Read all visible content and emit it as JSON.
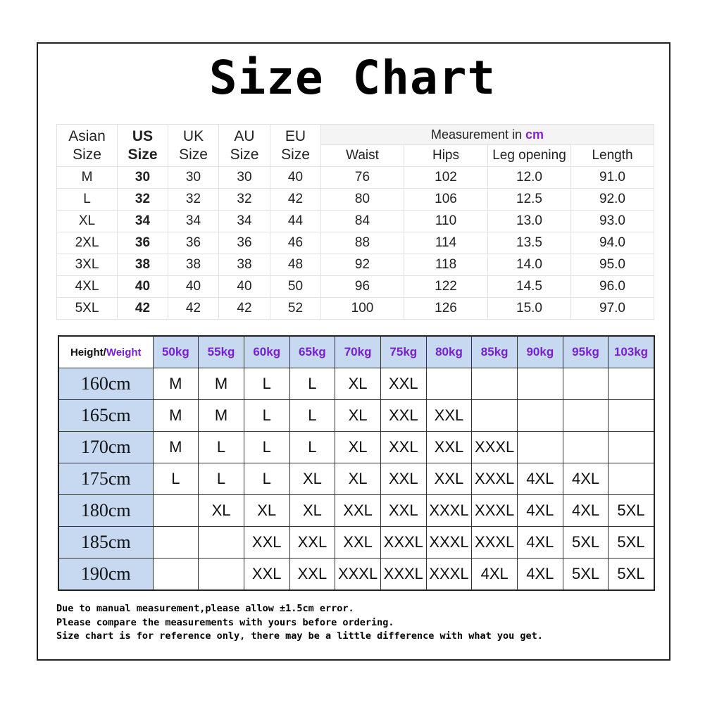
{
  "title": "Size Chart",
  "measurement_table": {
    "headers": {
      "asian_size": [
        "Asian",
        "Size"
      ],
      "us_size": [
        "US",
        "Size"
      ],
      "uk_size": [
        "UK",
        "Size"
      ],
      "au_size": [
        "AU",
        "Size"
      ],
      "eu_size": [
        "EU",
        "Size"
      ],
      "measurement_prefix": "Measurement in ",
      "measurement_unit": "cm",
      "sub_headers": [
        "Waist",
        "Hips",
        "Leg opening",
        "Length"
      ]
    },
    "rows": [
      [
        "M",
        "30",
        "30",
        "30",
        "40",
        "76",
        "102",
        "12.0",
        "91.0"
      ],
      [
        "L",
        "32",
        "32",
        "32",
        "42",
        "80",
        "106",
        "12.5",
        "92.0"
      ],
      [
        "XL",
        "34",
        "34",
        "34",
        "44",
        "84",
        "110",
        "13.0",
        "93.0"
      ],
      [
        "2XL",
        "36",
        "36",
        "36",
        "46",
        "88",
        "114",
        "13.5",
        "94.0"
      ],
      [
        "3XL",
        "38",
        "38",
        "38",
        "48",
        "92",
        "118",
        "14.0",
        "95.0"
      ],
      [
        "4XL",
        "40",
        "40",
        "40",
        "50",
        "96",
        "122",
        "14.5",
        "96.0"
      ],
      [
        "5XL",
        "42",
        "42",
        "42",
        "52",
        "100",
        "126",
        "15.0",
        "97.0"
      ]
    ]
  },
  "height_weight_table": {
    "corner_height": "Height/",
    "corner_weight": "Weight",
    "weights": [
      "50kg",
      "55kg",
      "60kg",
      "65kg",
      "70kg",
      "75kg",
      "80kg",
      "85kg",
      "90kg",
      "95kg",
      "103kg"
    ],
    "rows": [
      {
        "height": "160cm",
        "sizes": [
          "M",
          "M",
          "L",
          "L",
          "XL",
          "XXL",
          "",
          "",
          "",
          "",
          ""
        ]
      },
      {
        "height": "165cm",
        "sizes": [
          "M",
          "M",
          "L",
          "L",
          "XL",
          "XXL",
          "XXL",
          "",
          "",
          "",
          ""
        ]
      },
      {
        "height": "170cm",
        "sizes": [
          "M",
          "L",
          "L",
          "L",
          "XL",
          "XXL",
          "XXL",
          "XXXL",
          "",
          "",
          ""
        ]
      },
      {
        "height": "175cm",
        "sizes": [
          "L",
          "L",
          "L",
          "XL",
          "XL",
          "XXL",
          "XXL",
          "XXXL",
          "4XL",
          "4XL",
          ""
        ]
      },
      {
        "height": "180cm",
        "sizes": [
          "",
          "XL",
          "XL",
          "XL",
          "XXL",
          "XXL",
          "XXXL",
          "XXXL",
          "4XL",
          "4XL",
          "5XL"
        ]
      },
      {
        "height": "185cm",
        "sizes": [
          "",
          "",
          "XXL",
          "XXL",
          "XXL",
          "XXXL",
          "XXXL",
          "XXXL",
          "4XL",
          "5XL",
          "5XL"
        ]
      },
      {
        "height": "190cm",
        "sizes": [
          "",
          "",
          "XXL",
          "XXL",
          "XXXL",
          "XXXL",
          "XXXL",
          "4XL",
          "4XL",
          "5XL",
          "5XL"
        ]
      }
    ]
  },
  "notes": [
    "Due to manual measurement,please allow ±1.5cm error.",
    "Please compare the measurements with yours before ordering.",
    "Size chart is for reference only, there may be a little difference with what you get."
  ],
  "colors": {
    "header_blue": "#c6d9f0",
    "accent_purple": "#8a1fd8"
  }
}
